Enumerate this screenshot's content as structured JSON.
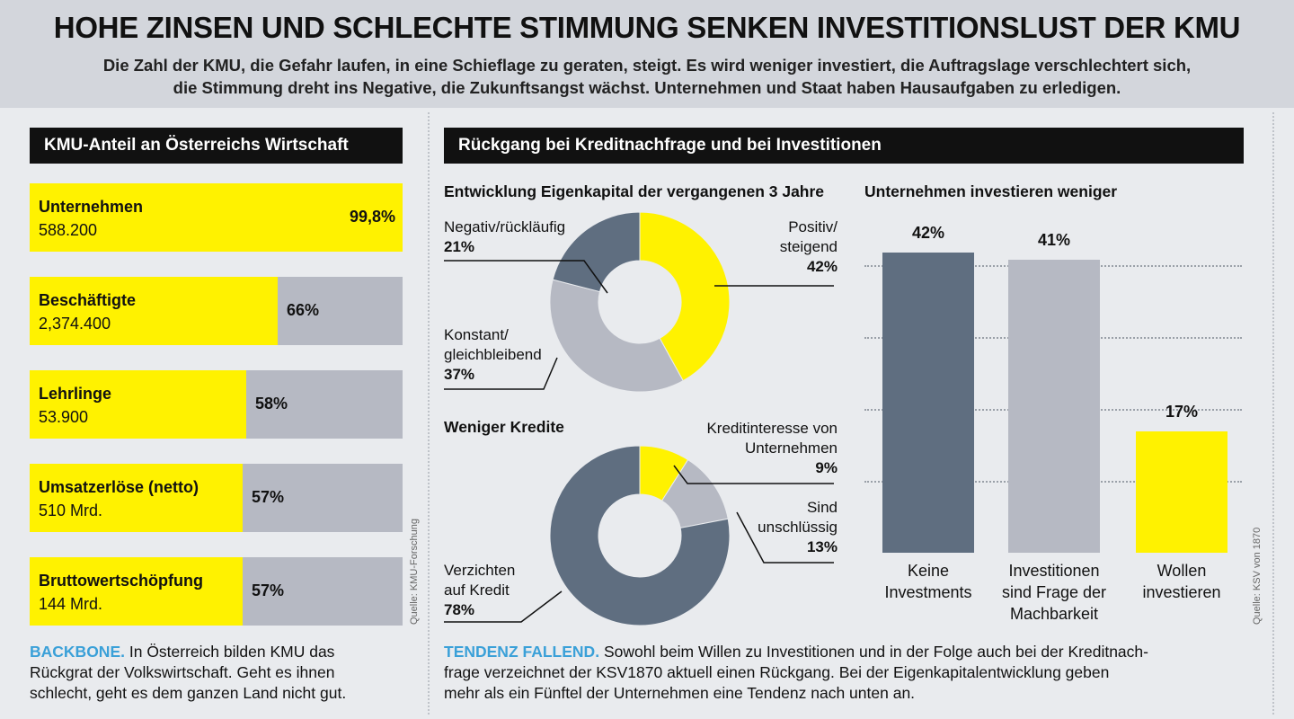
{
  "header": {
    "title": "HOHE ZINSEN UND SCHLECHTE STIMMUNG SENKEN INVESTITIONSLUST DER KMU",
    "subtitle_line1": "Die Zahl der KMU, die Gefahr laufen, in eine Schieflage zu geraten, steigt. Es wird weniger investiert, die Auftragslage verschlechtert sich,",
    "subtitle_line2": "die Stimmung dreht ins Negative, die Zukunftsangst wächst. Unternehmen und Staat haben Hausaufgaben zu erledigen."
  },
  "left_panel": {
    "heading": "KMU-Anteil an Österreichs Wirtschaft",
    "source": "Quelle: KMU-Forschung",
    "footer_highlight": "BACKBONE.",
    "footer_line1": "In Österreich bilden KMU das",
    "footer_line2": "Rückgrat der Volkswirtschaft. Geht es ihnen",
    "footer_line3": "schlecht, geht es dem ganzen Land nicht gut."
  },
  "right_panel": {
    "heading": "Rückgang bei Kreditnachfrage und bei Investitionen",
    "source": "Quelle: KSV von 1870",
    "footer_highlight": "TENDENZ FALLEND.",
    "footer_line1": "Sowohl beim Willen zu Investitionen und in der Folge auch bei der Kreditnach-",
    "footer_line2": "frage verzeichnet der KSV1870 aktuell einen Rückgang. Bei der Eigenkapitalentwicklung geben",
    "footer_line3": "mehr als ein Fünftel der Unternehmen eine Tendenz nach unten an."
  },
  "colors": {
    "yellow": "#fff200",
    "slate": "#5f6e80",
    "grey": "#b6b9c3",
    "accent_blue": "#3aa0d8"
  },
  "chart_data": [
    {
      "type": "bar",
      "orientation": "horizontal",
      "title": "KMU-Anteil an Österreichs Wirtschaft",
      "categories": [
        "Unternehmen",
        "Beschäftigte",
        "Lehrlinge",
        "Umsatzerlöse (netto)",
        "Bruttowertschöpfung"
      ],
      "absolute_values": [
        "588.200",
        "2,374.400",
        "53.900",
        "510 Mrd.",
        "144 Mrd."
      ],
      "values": [
        99.8,
        66,
        58,
        57,
        57
      ],
      "value_labels": [
        "99,8%",
        "66%",
        "58%",
        "57%",
        "57%"
      ],
      "xlim": [
        0,
        100
      ]
    },
    {
      "type": "pie",
      "style": "donut",
      "title": "Entwicklung Eigenkapital der vergangenen 3 Jahre",
      "slices": [
        {
          "label": "Positiv/ steigend",
          "label_line1": "Positiv/",
          "label_line2": "steigend",
          "value": 42,
          "value_label": "42%"
        },
        {
          "label": "Konstant/ gleichbleibend",
          "label_line1": "Konstant/",
          "label_line2": "gleichbleibend",
          "value": 37,
          "value_label": "37%"
        },
        {
          "label": "Negativ/rückläufig",
          "label_line1": "Negativ/rückläufig",
          "value": 21,
          "value_label": "21%"
        }
      ]
    },
    {
      "type": "pie",
      "style": "donut",
      "title": "Weniger Kredite",
      "slices": [
        {
          "label": "Kreditinteresse von Unternehmen",
          "label_line1": "Kreditinteresse von",
          "label_line2": "Unternehmen",
          "value": 9,
          "value_label": "9%"
        },
        {
          "label": "Sind unschlüssig",
          "label_line1": "Sind",
          "label_line2": "unschlüssig",
          "value": 13,
          "value_label": "13%"
        },
        {
          "label": "Verzichten auf Kredit",
          "label_line1": "Verzichten",
          "label_line2": "auf Kredit",
          "value": 78,
          "value_label": "78%"
        }
      ]
    },
    {
      "type": "bar",
      "title": "Unternehmen investieren weniger",
      "categories": [
        "Keine Investments",
        "Investitionen sind Frage der Machbarkeit",
        "Wollen investieren"
      ],
      "category_lines": [
        [
          "Keine",
          "Investments"
        ],
        [
          "Investitionen",
          "sind Frage der",
          "Machbarkeit"
        ],
        [
          "Wollen",
          "investieren"
        ]
      ],
      "values": [
        42,
        41,
        17
      ],
      "value_labels": [
        "42%",
        "41%",
        "17%"
      ],
      "ylim": [
        0,
        50
      ],
      "grid": true
    }
  ]
}
